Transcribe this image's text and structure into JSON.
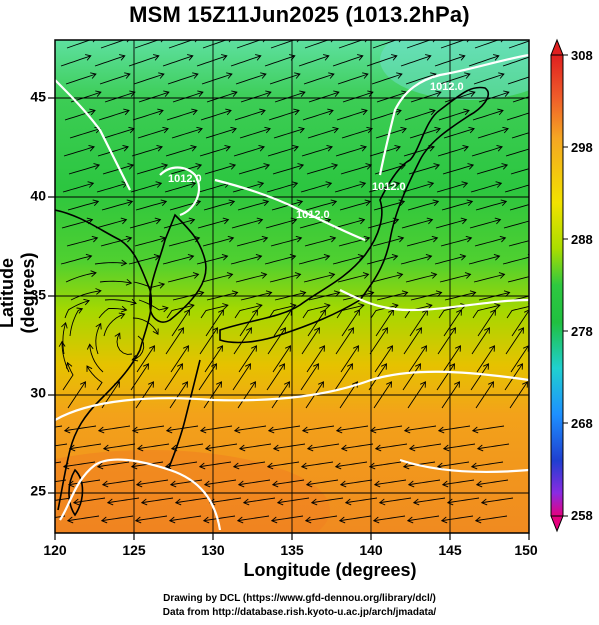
{
  "title": "MSM 15Z11Jun2025 (1013.2hPa)",
  "axes": {
    "x_label": "Longitude (degrees)",
    "y_label": "Latitude  (degrees)",
    "x_ticks": [
      "120",
      "125",
      "130",
      "135",
      "140",
      "145",
      "150"
    ],
    "y_ticks": [
      "25",
      "30",
      "35",
      "40",
      "45"
    ],
    "x_range": [
      120,
      150
    ],
    "y_range": [
      22.5,
      47.5
    ],
    "grid": "on"
  },
  "colorbar": {
    "ticks": [
      "308",
      "298",
      "288",
      "278",
      "268",
      "258"
    ],
    "range": [
      258,
      308
    ],
    "colors": [
      "#e6007e",
      "#8a2be2",
      "#1f3fd0",
      "#1e90ff",
      "#20d0d0",
      "#20c040",
      "#2ec840",
      "#aadd00",
      "#f2e200",
      "#f5a623",
      "#ef5b2a",
      "#e02020"
    ]
  },
  "contour_labels": [
    "1012.0",
    "1012.0",
    "1012.0",
    "1012.0"
  ],
  "credits": {
    "line1": "Drawing by DCL (https://www.gfd-dennou.org/library/dcl/)",
    "line2": "Data from http://database.rish.kyoto-u.ac.jp/arch/jmadata/"
  }
}
